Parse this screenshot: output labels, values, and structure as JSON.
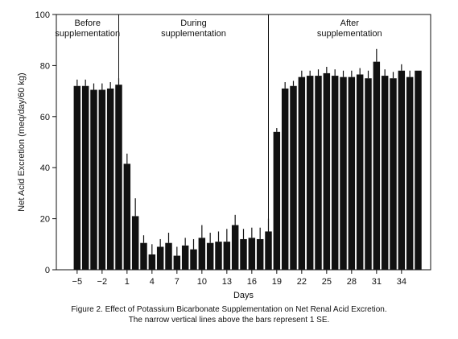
{
  "chart_data": {
    "type": "bar",
    "ylabel": "Net Acid Excretion (meq/day/60 kg)",
    "xlabel": "Days",
    "ylim": [
      0,
      100
    ],
    "yticks": [
      0,
      20,
      40,
      60,
      80,
      100
    ],
    "xlim": [
      -7.5,
      37.5
    ],
    "xticks": [
      -5,
      -2,
      1,
      4,
      7,
      10,
      13,
      16,
      19,
      22,
      25,
      28,
      31,
      34
    ],
    "grid": false,
    "period_boundaries": [
      0,
      18
    ],
    "periods": [
      {
        "label": "Before\nsupplementation",
        "from": -7.5,
        "to": 0
      },
      {
        "label": "During\nsupplementation",
        "from": 0,
        "to": 18
      },
      {
        "label": "After\nsupplementation",
        "from": 18,
        "to": 37.5
      }
    ],
    "days": [
      -5,
      -4,
      -3,
      -2,
      -1,
      0,
      1,
      2,
      3,
      4,
      5,
      6,
      7,
      8,
      9,
      10,
      11,
      12,
      13,
      14,
      15,
      16,
      17,
      18,
      19,
      20,
      21,
      22,
      23,
      24,
      25,
      26,
      27,
      28,
      29,
      30,
      31,
      32,
      33,
      34,
      35,
      36
    ],
    "values": [
      72,
      72,
      70.5,
      70.5,
      71,
      72.5,
      41.5,
      21,
      10.5,
      6,
      9,
      10.5,
      5.5,
      9.5,
      8,
      12.5,
      10.5,
      11,
      11,
      17.5,
      12,
      12.5,
      12,
      15,
      54,
      71,
      72,
      75.5,
      76,
      76,
      77,
      76,
      75.5,
      75.5,
      76.5,
      75,
      81.5,
      76,
      75,
      78,
      75.5,
      78
    ],
    "errors": [
      2.5,
      2.5,
      2.5,
      2.5,
      2.5,
      2.5,
      4,
      7,
      3,
      4,
      3,
      4,
      3.5,
      3,
      4,
      5,
      4,
      4,
      5,
      4,
      4,
      4,
      4.5,
      5,
      1.5,
      2.5,
      2,
      2.5,
      2,
      2.5,
      2.5,
      2.5,
      2.5,
      2.5,
      2.5,
      3,
      5,
      2.5,
      2.5,
      2.5,
      2.5,
      0
    ]
  },
  "caption": {
    "line1": "Figure 2. Effect of Potassium Bicarbonate Supplementation on Net Renal Acid Excretion.",
    "line2": "The narrow vertical lines above the bars represent 1 SE."
  },
  "colors": {
    "bar": "#111111",
    "axis": "#111111"
  }
}
